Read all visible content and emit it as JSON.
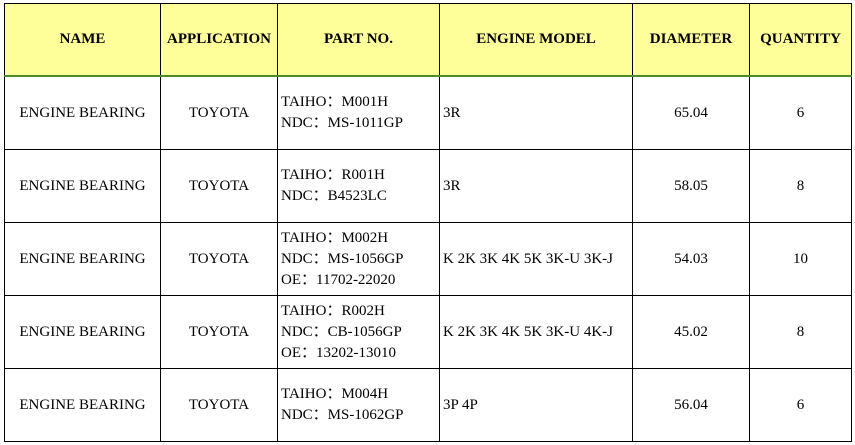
{
  "headers": [
    "NAME",
    "APPLICATION",
    "PART NO.",
    "ENGINE MODEL",
    "DIAMETER",
    "QUANTITY"
  ],
  "rows": [
    {
      "name": "ENGINE BEARING",
      "application": "TOYOTA",
      "part": [
        "TAIHO：M001H",
        "NDC：MS-1011GP"
      ],
      "engine": "3R",
      "diameter": "65.04",
      "quantity": "6"
    },
    {
      "name": "ENGINE BEARING",
      "application": "TOYOTA",
      "part": [
        "TAIHO：R001H",
        "NDC：B4523LC"
      ],
      "engine": "3R",
      "diameter": "58.05",
      "quantity": "8"
    },
    {
      "name": "ENGINE BEARING",
      "application": "TOYOTA",
      "part": [
        "TAIHO：M002H",
        "NDC：MS-1056GP",
        "OE：11702-22020"
      ],
      "engine": "K 2K 3K 4K 5K 3K-U 3K-J",
      "diameter": "54.03",
      "quantity": "10"
    },
    {
      "name": "ENGINE BEARING",
      "application": "TOYOTA",
      "part": [
        "TAIHO：R002H",
        "NDC：CB-1056GP",
        "OE：13202-13010"
      ],
      "engine": "K 2K 3K 4K 5K 3K-U 4K-J",
      "diameter": "45.02",
      "quantity": "8"
    },
    {
      "name": "ENGINE BEARING",
      "application": "TOYOTA",
      "part": [
        "TAIHO：M004H",
        "NDC：MS-1062GP"
      ],
      "engine": "3P 4P",
      "diameter": "56.04",
      "quantity": "6"
    }
  ]
}
